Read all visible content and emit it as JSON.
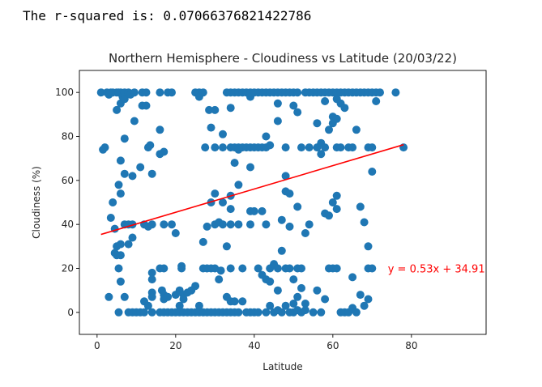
{
  "output": {
    "prefix": "The r-squared is: ",
    "value": "0.07066376821422786"
  },
  "chart_data": {
    "type": "scatter",
    "title": "Northern Hemisphere - Cloudiness vs Latitude (20/03/22)",
    "xlabel": "Latitude",
    "ylabel": "Cloudiness (%)",
    "xlim": [
      -4.5,
      99
    ],
    "ylim": [
      -10,
      110
    ],
    "xticks": [
      0,
      20,
      40,
      60,
      80
    ],
    "yticks": [
      0,
      20,
      40,
      60,
      80,
      100
    ],
    "grid": false,
    "marker_color": "#1f77b4",
    "regression": {
      "slope": 0.53,
      "intercept": 34.91,
      "x_range": [
        1,
        78
      ],
      "color": "#ff0000",
      "label": "y = 0.53x + 34.91",
      "label_position": [
        74,
        20
      ]
    },
    "points": [
      [
        1,
        100
      ],
      [
        1.5,
        74
      ],
      [
        2,
        75
      ],
      [
        2.5,
        100
      ],
      [
        3,
        99
      ],
      [
        3,
        7
      ],
      [
        3.5,
        100
      ],
      [
        3.5,
        43
      ],
      [
        4,
        100
      ],
      [
        4.5,
        38
      ],
      [
        4.5,
        27
      ],
      [
        4,
        50
      ],
      [
        5,
        100
      ],
      [
        5,
        92
      ],
      [
        5,
        30
      ],
      [
        5,
        26
      ],
      [
        5.5,
        100
      ],
      [
        5.5,
        58
      ],
      [
        5.5,
        20
      ],
      [
        5.5,
        0
      ],
      [
        6,
        100
      ],
      [
        6,
        95
      ],
      [
        6,
        69
      ],
      [
        6,
        54
      ],
      [
        6,
        31
      ],
      [
        6,
        26
      ],
      [
        6,
        14
      ],
      [
        6.5,
        98
      ],
      [
        7,
        100
      ],
      [
        7,
        97
      ],
      [
        7,
        79
      ],
      [
        7,
        63
      ],
      [
        7,
        40
      ],
      [
        7,
        7
      ],
      [
        8,
        100
      ],
      [
        8,
        40
      ],
      [
        8,
        31
      ],
      [
        8,
        0
      ],
      [
        8.5,
        99
      ],
      [
        9,
        62
      ],
      [
        9,
        40
      ],
      [
        9,
        34
      ],
      [
        9,
        0
      ],
      [
        9.5,
        100
      ],
      [
        9.5,
        87
      ],
      [
        10,
        0
      ],
      [
        11,
        66
      ],
      [
        11,
        0
      ],
      [
        11.5,
        100
      ],
      [
        11.5,
        94
      ],
      [
        12,
        40
      ],
      [
        12,
        5
      ],
      [
        12,
        0
      ],
      [
        12.5,
        100
      ],
      [
        12.5,
        94
      ],
      [
        13,
        75
      ],
      [
        13,
        39
      ],
      [
        13,
        3
      ],
      [
        13.5,
        76
      ],
      [
        14,
        63
      ],
      [
        14,
        40
      ],
      [
        14,
        18
      ],
      [
        14,
        15
      ],
      [
        14,
        9
      ],
      [
        14,
        7
      ],
      [
        14,
        0
      ],
      [
        16,
        100
      ],
      [
        16,
        83
      ],
      [
        16,
        72
      ],
      [
        16,
        20
      ],
      [
        16,
        0
      ],
      [
        16.5,
        10
      ],
      [
        17,
        73
      ],
      [
        17,
        40
      ],
      [
        17,
        20
      ],
      [
        17,
        8
      ],
      [
        17,
        6
      ],
      [
        17,
        0
      ],
      [
        18,
        100
      ],
      [
        18,
        7
      ],
      [
        18,
        0
      ],
      [
        19,
        100
      ],
      [
        19,
        40
      ],
      [
        19,
        0
      ],
      [
        20,
        36
      ],
      [
        20,
        8
      ],
      [
        20,
        0
      ],
      [
        21,
        10
      ],
      [
        21,
        3
      ],
      [
        21,
        0
      ],
      [
        21.5,
        21
      ],
      [
        21.5,
        20
      ],
      [
        22,
        8
      ],
      [
        22,
        6
      ],
      [
        22,
        0
      ],
      [
        23,
        9
      ],
      [
        23,
        0
      ],
      [
        24,
        10
      ],
      [
        24,
        0
      ],
      [
        25,
        100
      ],
      [
        25,
        12
      ],
      [
        25,
        0
      ],
      [
        26,
        100
      ],
      [
        26,
        98
      ],
      [
        26,
        3
      ],
      [
        26,
        0
      ],
      [
        27,
        100
      ],
      [
        27,
        32
      ],
      [
        27,
        20
      ],
      [
        27,
        0
      ],
      [
        27.5,
        75
      ],
      [
        28,
        39
      ],
      [
        28,
        20
      ],
      [
        28,
        0
      ],
      [
        28.5,
        92
      ],
      [
        29,
        84
      ],
      [
        29,
        50
      ],
      [
        29,
        20
      ],
      [
        29,
        0
      ],
      [
        30,
        92
      ],
      [
        30,
        75
      ],
      [
        30,
        54
      ],
      [
        30,
        40
      ],
      [
        30,
        20
      ],
      [
        30,
        0
      ],
      [
        31,
        41
      ],
      [
        31,
        15
      ],
      [
        31,
        0
      ],
      [
        31.5,
        19
      ],
      [
        32,
        81
      ],
      [
        32,
        75
      ],
      [
        32,
        50
      ],
      [
        32,
        40
      ],
      [
        32,
        0
      ],
      [
        33,
        100
      ],
      [
        33,
        30
      ],
      [
        33,
        7
      ],
      [
        33,
        0
      ],
      [
        34,
        100
      ],
      [
        34,
        93
      ],
      [
        34,
        75
      ],
      [
        34,
        53
      ],
      [
        34,
        47
      ],
      [
        34,
        40
      ],
      [
        34,
        20
      ],
      [
        34,
        5
      ],
      [
        34,
        0
      ],
      [
        35,
        100
      ],
      [
        35,
        75
      ],
      [
        35,
        68
      ],
      [
        35,
        5
      ],
      [
        35,
        0
      ],
      [
        36,
        100
      ],
      [
        36,
        75
      ],
      [
        36,
        74
      ],
      [
        36,
        58
      ],
      [
        36,
        40
      ],
      [
        36,
        0
      ],
      [
        37,
        100
      ],
      [
        37,
        75
      ],
      [
        37,
        20
      ],
      [
        37,
        5
      ],
      [
        38,
        100
      ],
      [
        38,
        75
      ],
      [
        38,
        0
      ],
      [
        39,
        100
      ],
      [
        39,
        98
      ],
      [
        39,
        75
      ],
      [
        39,
        66
      ],
      [
        39,
        46
      ],
      [
        39,
        40
      ],
      [
        39,
        0
      ],
      [
        40,
        100
      ],
      [
        40,
        75
      ],
      [
        40,
        46
      ],
      [
        40,
        0
      ],
      [
        41,
        100
      ],
      [
        41,
        75
      ],
      [
        41,
        20
      ],
      [
        41,
        0
      ],
      [
        42,
        100
      ],
      [
        42,
        75
      ],
      [
        42,
        46
      ],
      [
        42,
        17
      ],
      [
        43,
        100
      ],
      [
        43,
        80
      ],
      [
        43,
        75
      ],
      [
        43,
        40
      ],
      [
        43,
        15
      ],
      [
        43,
        0
      ],
      [
        44,
        100
      ],
      [
        44,
        76
      ],
      [
        44,
        20
      ],
      [
        44,
        14
      ],
      [
        44,
        3
      ],
      [
        45,
        100
      ],
      [
        45,
        22
      ],
      [
        45,
        0
      ],
      [
        46,
        100
      ],
      [
        46,
        95
      ],
      [
        46,
        87
      ],
      [
        46,
        20
      ],
      [
        46,
        10
      ],
      [
        46,
        1
      ],
      [
        47,
        100
      ],
      [
        47,
        42
      ],
      [
        47,
        28
      ],
      [
        47,
        0
      ],
      [
        48,
        100
      ],
      [
        48,
        75
      ],
      [
        48,
        62
      ],
      [
        48,
        55
      ],
      [
        48,
        20
      ],
      [
        48,
        3
      ],
      [
        49,
        100
      ],
      [
        49,
        54
      ],
      [
        49,
        39
      ],
      [
        49,
        20
      ],
      [
        49,
        0
      ],
      [
        50,
        100
      ],
      [
        50,
        94
      ],
      [
        50,
        15
      ],
      [
        50,
        4
      ],
      [
        50,
        0
      ],
      [
        51,
        100
      ],
      [
        51,
        91
      ],
      [
        51,
        48
      ],
      [
        51,
        20
      ],
      [
        51,
        7
      ],
      [
        51,
        1
      ],
      [
        52,
        75
      ],
      [
        52,
        20
      ],
      [
        52,
        11
      ],
      [
        52,
        0
      ],
      [
        53,
        100
      ],
      [
        53,
        36
      ],
      [
        53,
        4
      ],
      [
        53,
        1
      ],
      [
        54,
        100
      ],
      [
        54,
        75
      ],
      [
        54,
        40
      ],
      [
        55,
        100
      ],
      [
        55,
        0
      ],
      [
        56,
        100
      ],
      [
        56,
        86
      ],
      [
        56,
        75
      ],
      [
        56,
        10
      ],
      [
        57,
        100
      ],
      [
        57,
        77
      ],
      [
        57,
        72
      ],
      [
        57,
        0
      ],
      [
        58,
        100
      ],
      [
        58,
        96
      ],
      [
        58,
        75
      ],
      [
        58,
        45
      ],
      [
        58,
        6
      ],
      [
        59,
        100
      ],
      [
        59,
        83
      ],
      [
        59,
        44
      ],
      [
        59,
        20
      ],
      [
        60,
        100
      ],
      [
        60,
        89
      ],
      [
        60,
        86
      ],
      [
        60,
        50
      ],
      [
        60,
        20
      ],
      [
        61,
        100
      ],
      [
        61,
        97
      ],
      [
        61,
        88
      ],
      [
        61,
        75
      ],
      [
        61,
        53
      ],
      [
        61,
        47
      ],
      [
        61,
        20
      ],
      [
        62,
        100
      ],
      [
        62,
        95
      ],
      [
        62,
        75
      ],
      [
        62,
        0
      ],
      [
        63,
        100
      ],
      [
        63,
        93
      ],
      [
        63,
        0
      ],
      [
        64,
        100
      ],
      [
        64,
        75
      ],
      [
        64,
        0
      ],
      [
        65,
        100
      ],
      [
        65,
        75
      ],
      [
        65,
        16
      ],
      [
        65,
        2
      ],
      [
        66,
        100
      ],
      [
        66,
        83
      ],
      [
        66,
        0
      ],
      [
        67,
        100
      ],
      [
        67,
        48
      ],
      [
        67,
        8
      ],
      [
        68,
        100
      ],
      [
        68,
        41
      ],
      [
        68,
        3
      ],
      [
        69,
        100
      ],
      [
        69,
        75
      ],
      [
        69,
        30
      ],
      [
        69,
        20
      ],
      [
        69,
        6
      ],
      [
        70,
        100
      ],
      [
        70,
        75
      ],
      [
        70,
        64
      ],
      [
        70,
        20
      ],
      [
        71,
        100
      ],
      [
        71,
        96
      ],
      [
        72,
        100
      ],
      [
        76,
        100
      ],
      [
        78,
        75
      ]
    ]
  }
}
